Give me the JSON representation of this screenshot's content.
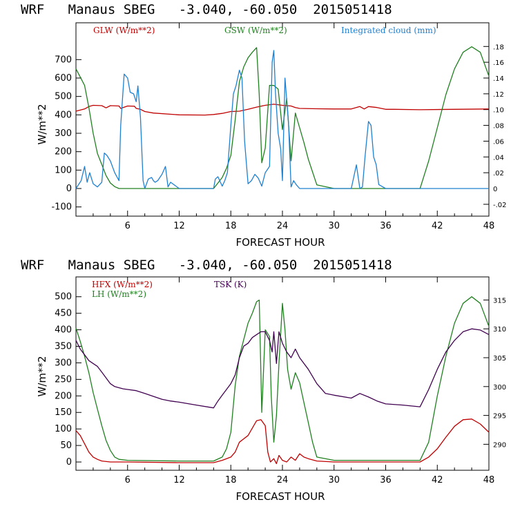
{
  "chart_data": [
    {
      "type": "line",
      "title": "WRF   Manaus SBEG   -3.040, -60.050  2015051418",
      "xlabel": "FORECAST HOUR",
      "ylabel": "W/m**2",
      "xlim": [
        0,
        48
      ],
      "ylim": [
        -150,
        900
      ],
      "y2lim": [
        -0.035,
        0.21
      ],
      "xticks": [
        "6",
        "12",
        "18",
        "24",
        "30",
        "36",
        "42",
        "48"
      ],
      "yticks": [
        "-100",
        "0",
        "100",
        "200",
        "300",
        "400",
        "500",
        "600",
        "700"
      ],
      "y2ticks": [
        "-.02",
        "0",
        ".02",
        ".04",
        ".06",
        ".08",
        ".10",
        ".12",
        ".14",
        ".16",
        ".18"
      ],
      "series": [
        {
          "name": "GLW (W/m**2)",
          "color": "#c00000",
          "axis": "left",
          "x": [
            0,
            1,
            1.5,
            2,
            3,
            3.5,
            4,
            5,
            5.2,
            6,
            6.8,
            7,
            7.5,
            8,
            9,
            12,
            15,
            16,
            17,
            18,
            19,
            20,
            21,
            22,
            23,
            24,
            25,
            25.5,
            26,
            28,
            30,
            32,
            33,
            33.5,
            34,
            35,
            36,
            37,
            40,
            44,
            48
          ],
          "y": [
            420,
            432,
            445,
            452,
            450,
            438,
            450,
            448,
            435,
            448,
            447,
            435,
            430,
            418,
            410,
            400,
            399,
            402,
            408,
            418,
            420,
            430,
            442,
            452,
            458,
            452,
            448,
            440,
            435,
            433,
            432,
            432,
            445,
            432,
            445,
            440,
            430,
            430,
            428,
            430,
            432
          ]
        },
        {
          "name": "GSW (W/m**2)",
          "color": "#208020",
          "axis": "left",
          "x": [
            0,
            1,
            1.5,
            2,
            2.5,
            3,
            3.5,
            4,
            4.5,
            5,
            6,
            12,
            16,
            16.5,
            17,
            17.5,
            18,
            18.5,
            19,
            19.5,
            20,
            20.5,
            21,
            21.3,
            21.6,
            22,
            22.5,
            23,
            23.5,
            24,
            24.5,
            25,
            25.5,
            26,
            26.5,
            27,
            27.5,
            28,
            30,
            40,
            41,
            42,
            43,
            44,
            45,
            46,
            47,
            48
          ],
          "y": [
            650,
            560,
            440,
            300,
            190,
            130,
            70,
            30,
            10,
            0,
            0,
            0,
            0,
            30,
            60,
            110,
            180,
            370,
            580,
            660,
            710,
            740,
            765,
            510,
            140,
            220,
            560,
            560,
            540,
            320,
            490,
            150,
            410,
            330,
            250,
            160,
            90,
            20,
            0,
            0,
            150,
            330,
            510,
            650,
            740,
            770,
            740,
            610
          ]
        },
        {
          "name": "Integrated cloud (mm)",
          "color": "#1f80d0",
          "axis": "right",
          "x": [
            0,
            0.6,
            1,
            1.3,
            1.6,
            2,
            2.5,
            3,
            3.3,
            3.6,
            4,
            4.5,
            5,
            5.2,
            5.6,
            6,
            6.3,
            6.7,
            7,
            7.2,
            7.5,
            7.8,
            8,
            8.4,
            8.8,
            9,
            9.2,
            9.5,
            10,
            10.4,
            10.7,
            11,
            12,
            16,
            16.2,
            16.5,
            17,
            17.3,
            17.6,
            18,
            18.3,
            18.6,
            19,
            19.3,
            19.6,
            20,
            20.4,
            20.8,
            21.2,
            21.6,
            22,
            22.5,
            22.8,
            23,
            23.2,
            23.5,
            23.8,
            24,
            24.3,
            24.7,
            25,
            25.3,
            25.6,
            26,
            32,
            32.3,
            32.6,
            33,
            33.3,
            33.6,
            34,
            34.3,
            34.6,
            34.9,
            35.2,
            36,
            48
          ],
          "y": [
            0,
            0.01,
            0.028,
            0.008,
            0.02,
            0.006,
            0.002,
            0.008,
            0.045,
            0.042,
            0.035,
            0.02,
            0.01,
            0.08,
            0.145,
            0.14,
            0.122,
            0.12,
            0.11,
            0.13,
            0.09,
            0.01,
            0,
            0.012,
            0.014,
            0.01,
            0.008,
            0.01,
            0.018,
            0.028,
            0.002,
            0.008,
            0,
            0,
            0.012,
            0.015,
            0.003,
            0.01,
            0.02,
            0.08,
            0.12,
            0.13,
            0.15,
            0.14,
            0.06,
            0.006,
            0.01,
            0.018,
            0.013,
            0.003,
            0.02,
            0.028,
            0.16,
            0.175,
            0.12,
            0.07,
            0.05,
            0.01,
            0.14,
            0.085,
            0.002,
            0.01,
            0.005,
            0,
            0,
            0.015,
            0.03,
            0,
            0.002,
            0.04,
            0.085,
            0.08,
            0.04,
            0.03,
            0.005,
            0,
            0
          ]
        }
      ]
    },
    {
      "type": "line",
      "title": "WRF   Manaus SBEG   -3.040, -60.050  2015051418",
      "xlabel": "FORECAST HOUR",
      "ylabel": "W/m**2",
      "xlim": [
        0,
        48
      ],
      "ylim": [
        -25,
        560
      ],
      "y2lim": [
        285.5,
        319
      ],
      "xticks": [
        "6",
        "12",
        "18",
        "24",
        "30",
        "36",
        "42",
        "48"
      ],
      "yticks": [
        "0",
        "50",
        "100",
        "150",
        "200",
        "250",
        "300",
        "350",
        "400",
        "450",
        "500"
      ],
      "y2ticks": [
        "290",
        "295",
        "300",
        "305",
        "310",
        "315"
      ],
      "series": [
        {
          "name": "HFX (W/m**2)",
          "color": "#c00000",
          "axis": "left",
          "x": [
            0,
            0.5,
            1,
            1.5,
            2,
            2.5,
            3,
            4,
            6,
            12,
            16,
            17,
            18,
            18.5,
            19,
            20,
            21,
            21.5,
            22,
            22.3,
            22.6,
            23,
            23.3,
            23.6,
            24,
            24.5,
            25,
            25.5,
            26,
            26.5,
            27,
            28,
            30,
            40,
            41,
            42,
            43,
            44,
            45,
            46,
            47,
            48
          ],
          "y": [
            95,
            80,
            55,
            30,
            15,
            8,
            3,
            0,
            0,
            -2,
            -2,
            5,
            15,
            30,
            60,
            80,
            125,
            128,
            110,
            30,
            0,
            10,
            -5,
            20,
            5,
            0,
            15,
            5,
            25,
            15,
            10,
            3,
            0,
            0,
            15,
            40,
            75,
            108,
            128,
            130,
            115,
            90
          ]
        },
        {
          "name": "LH (W/m**2)",
          "color": "#208020",
          "axis": "left",
          "x": [
            0,
            0.5,
            1,
            1.5,
            2,
            2.5,
            3,
            3.5,
            4,
            4.5,
            5,
            6,
            12,
            16,
            17,
            17.5,
            18,
            18.5,
            19,
            19.5,
            20,
            20.5,
            21,
            21.3,
            21.6,
            22,
            22.5,
            22.7,
            23,
            23.3,
            23.6,
            24,
            24.3,
            24.6,
            25,
            25.5,
            26,
            26.5,
            27,
            27.5,
            28,
            30,
            40,
            41,
            42,
            43,
            44,
            45,
            46,
            47,
            48
          ],
          "y": [
            405,
            365,
            320,
            270,
            210,
            160,
            110,
            65,
            35,
            15,
            8,
            5,
            3,
            3,
            15,
            40,
            90,
            230,
            320,
            370,
            420,
            450,
            485,
            490,
            150,
            400,
            380,
            200,
            60,
            140,
            300,
            480,
            400,
            280,
            220,
            270,
            240,
            180,
            120,
            60,
            15,
            5,
            5,
            60,
            200,
            320,
            420,
            480,
            500,
            480,
            410
          ]
        },
        {
          "name": "TSK (K)",
          "color": "#400050",
          "axis": "right",
          "x": [
            0,
            0.5,
            1,
            1.5,
            2,
            2.5,
            3,
            3.5,
            4,
            4.5,
            5,
            5.5,
            6,
            7,
            8,
            9,
            10,
            11,
            12,
            14,
            16,
            16.5,
            17,
            17.5,
            18,
            18.5,
            19,
            19.5,
            20,
            20.5,
            21,
            21.5,
            22,
            22.5,
            22.8,
            23,
            23.3,
            23.6,
            24,
            24.5,
            25,
            25.5,
            26,
            27,
            28,
            29,
            30,
            32,
            33,
            34,
            35,
            36,
            38,
            40,
            41,
            42,
            43,
            44,
            45,
            46,
            47,
            48
          ],
          "y": [
            308,
            306.5,
            305.5,
            304.5,
            304,
            303.5,
            302.5,
            301.5,
            300.5,
            300,
            299.8,
            299.6,
            299.5,
            299.3,
            298.8,
            298.3,
            297.8,
            297.5,
            297.3,
            296.8,
            296.3,
            297.5,
            298.5,
            299.5,
            300.5,
            302,
            305,
            307,
            307.5,
            308.5,
            309,
            309.5,
            309.5,
            308,
            306,
            309.5,
            304,
            309.5,
            307.5,
            306,
            305,
            306.5,
            305,
            303,
            300.5,
            298.8,
            298.5,
            298,
            298.8,
            298.2,
            297.5,
            297,
            296.8,
            296.5,
            299.5,
            303,
            306,
            308,
            309.5,
            310,
            309.8,
            309
          ]
        }
      ]
    }
  ],
  "top": {
    "title": "WRF   Manaus SBEG   -3.040, -60.050  2015051418",
    "xlabel": "FORECAST HOUR",
    "ylabel": "W/m**2",
    "legend_glw": "GLW (W/m**2)",
    "legend_gsw": "GSW (W/m**2)",
    "legend_cloud": "Integrated cloud (mm)",
    "xticks": [
      "6",
      "12",
      "18",
      "24",
      "30",
      "36",
      "42",
      "48"
    ],
    "yticks": [
      "-100",
      "0",
      "100",
      "200",
      "300",
      "400",
      "500",
      "600",
      "700"
    ],
    "y2ticks": [
      "-.02",
      "0",
      ".02",
      ".04",
      ".06",
      ".08",
      ".10",
      ".12",
      ".14",
      ".16",
      ".18"
    ]
  },
  "bottom": {
    "title": "WRF   Manaus SBEG   -3.040, -60.050  2015051418",
    "xlabel": "FORECAST HOUR",
    "ylabel": "W/m**2",
    "legend_hfx": "HFX (W/m**2)",
    "legend_lh": "LH (W/m**2)",
    "legend_tsk": "TSK (K)",
    "xticks": [
      "6",
      "12",
      "18",
      "24",
      "30",
      "36",
      "42",
      "48"
    ],
    "yticks": [
      "0",
      "50",
      "100",
      "150",
      "200",
      "250",
      "300",
      "350",
      "400",
      "450",
      "500"
    ],
    "y2ticks": [
      "290",
      "295",
      "300",
      "305",
      "310",
      "315"
    ]
  }
}
